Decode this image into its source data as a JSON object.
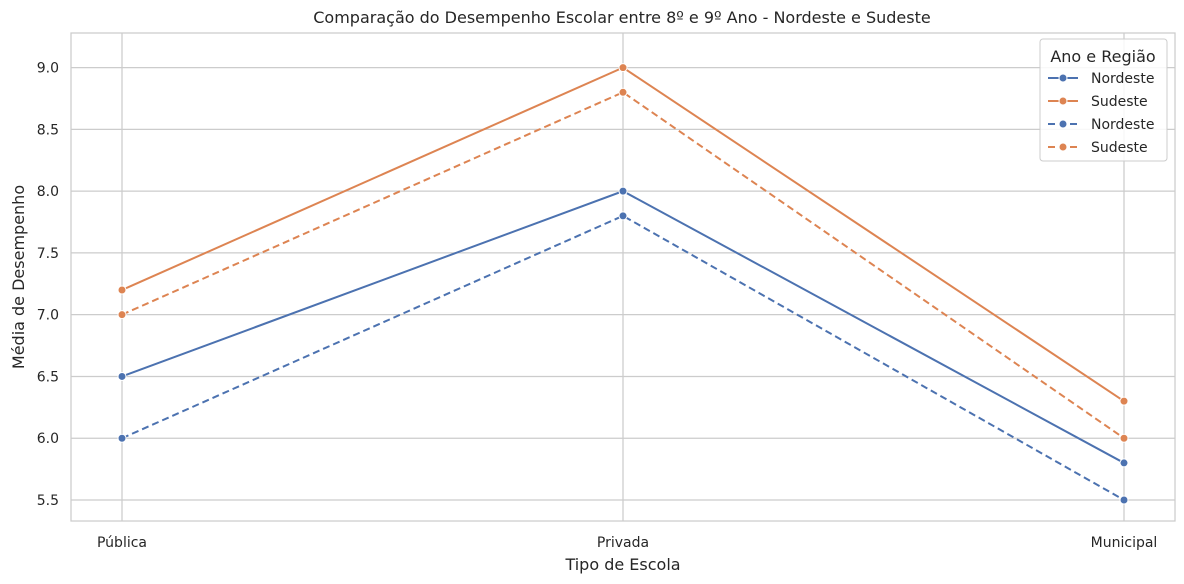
{
  "chart_data": {
    "type": "line",
    "title": "Comparação do Desempenho Escolar entre 8º e 9º Ano - Nordeste e Sudeste",
    "xlabel": "Tipo de Escola",
    "ylabel": "Média de Desempenho",
    "categories": [
      "Pública",
      "Privada",
      "Municipal"
    ],
    "ylim": [
      5.33,
      9.28
    ],
    "yticks": [
      "5.5",
      "6.0",
      "6.5",
      "7.0",
      "7.5",
      "8.0",
      "8.5",
      "9.0"
    ],
    "grid": true,
    "legend": {
      "title": "Ano e Região",
      "position": "top-right"
    },
    "series": [
      {
        "name": "Nordeste",
        "values": [
          6.5,
          8.0,
          5.8
        ],
        "color": "#4c72b0",
        "style": "solid"
      },
      {
        "name": "Sudeste",
        "values": [
          7.2,
          9.0,
          6.3
        ],
        "color": "#dd8452",
        "style": "solid"
      },
      {
        "name": "Nordeste",
        "values": [
          6.0,
          7.8,
          5.5
        ],
        "color": "#4c72b0",
        "style": "dashed"
      },
      {
        "name": "Sudeste",
        "values": [
          7.0,
          8.8,
          6.0
        ],
        "color": "#dd8452",
        "style": "dashed"
      }
    ]
  }
}
